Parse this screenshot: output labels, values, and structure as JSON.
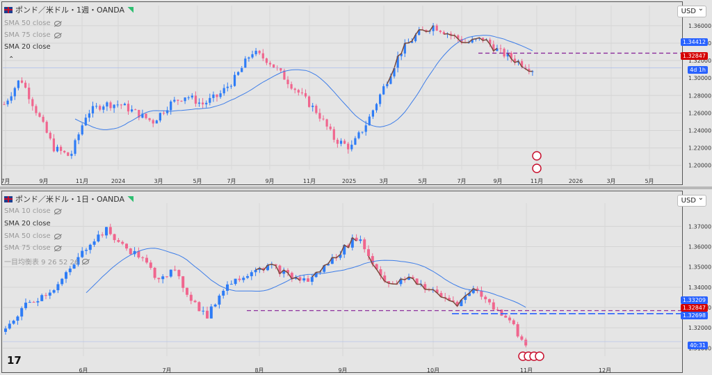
{
  "top": {
    "title": "ポンド／米ドル・1週・OANDA",
    "legend": [
      {
        "label": "SMA 50 close",
        "active": false
      },
      {
        "label": "SMA 75 close",
        "active": false
      },
      {
        "label": "SMA 20 close",
        "active": true
      }
    ],
    "currency": "USD",
    "price_axis": [
      "1.36000",
      "1.34000",
      "1.32000",
      "1.30000",
      "1.28000",
      "1.26000",
      "1.24000",
      "1.22000",
      "1.20000"
    ],
    "time_axis": [
      "7月",
      "9月",
      "11月",
      "2024",
      "3月",
      "5月",
      "7月",
      "9月",
      "11月",
      "2025",
      "3月",
      "5月",
      "7月",
      "9月",
      "11月",
      "2026",
      "3月",
      "5月"
    ],
    "tags": [
      {
        "text": "1.34412",
        "color": "#2962ff"
      },
      {
        "text": "1.32847",
        "color": "#d50000"
      },
      {
        "text": "4d 1h",
        "color": "#2962ff"
      }
    ],
    "price_min": 1.195,
    "price_max": 1.375,
    "dashed_level": 1.32847,
    "current": 1.3115
  },
  "bottom": {
    "title": "ポンド／米ドル・1日・OANDA",
    "legend": [
      {
        "label": "SMA 10 close",
        "active": false
      },
      {
        "label": "SMA 20 close",
        "active": true
      },
      {
        "label": "SMA 50 close",
        "active": false
      },
      {
        "label": "SMA 75 close",
        "active": false
      },
      {
        "label": "一目均衡表 9 26 52 26",
        "active": false
      }
    ],
    "currency": "USD",
    "price_axis": [
      "1.37000",
      "1.36000",
      "1.35000",
      "1.34000",
      "1.33000",
      "1.32000",
      "1.31000"
    ],
    "time_axis": [
      "6月",
      "7月",
      "8月",
      "9月",
      "10月",
      "11月",
      "12月"
    ],
    "tags": [
      {
        "text": "1.33209",
        "color": "#2962ff"
      },
      {
        "text": "1.32847",
        "color": "#d50000"
      },
      {
        "text": "1.32698",
        "color": "#2962ff"
      },
      {
        "text": "40:31",
        "color": "#2962ff"
      }
    ],
    "price_min": 1.306,
    "price_max": 1.378,
    "dashed_level": 1.32847,
    "blue_level": 1.32698,
    "current": 1.3132
  },
  "colors": {
    "up": "#2e7cf6",
    "down": "#f0668e",
    "sma": "#3d7de8",
    "dashed": "#8b2c9b",
    "hand": "#7a4a3a"
  },
  "logo": "17"
}
